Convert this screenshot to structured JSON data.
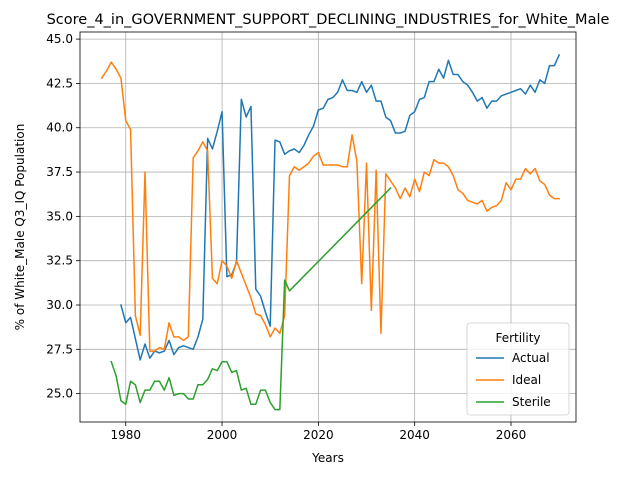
{
  "chart_data": {
    "type": "line",
    "title": "Score_4_in_GOVERNMENT_SUPPORT_DECLINING_INDUSTRIES_for_White_Male",
    "xlabel": "Years",
    "ylabel": "% of White_Male Q3_IQ Population",
    "xlim": [
      1970.5,
      2073.5
    ],
    "ylim": [
      23.4,
      45.4
    ],
    "xticks": [
      1980,
      2000,
      2020,
      2040,
      2060
    ],
    "yticks": [
      25.0,
      27.5,
      30.0,
      32.5,
      35.0,
      37.5,
      40.0,
      42.5,
      45.0
    ],
    "grid": true,
    "legend": {
      "title": "Fertility",
      "placement": "lower-right"
    },
    "series": [
      {
        "name": "Actual",
        "color": "#1f77b4",
        "x": [
          1979,
          1980,
          1981,
          1982,
          1983,
          1984,
          1985,
          1986,
          1987,
          1988,
          1989,
          1990,
          1991,
          1992,
          1993,
          1994,
          1995,
          1996,
          1997,
          1998,
          1999,
          2000,
          2001,
          2002,
          2003,
          2004,
          2005,
          2006,
          2007,
          2008,
          2009,
          2010,
          2011,
          2012,
          2013,
          2014,
          2015,
          2016,
          2017,
          2018,
          2019,
          2020,
          2021,
          2022,
          2023,
          2024,
          2025,
          2026,
          2027,
          2028,
          2029,
          2030,
          2031,
          2032,
          2033,
          2034,
          2035,
          2036,
          2037,
          2038,
          2039,
          2040,
          2041,
          2042,
          2043,
          2044,
          2045,
          2046,
          2047,
          2048,
          2049,
          2050,
          2051,
          2052,
          2053,
          2054,
          2055,
          2056,
          2057,
          2058,
          2059,
          2060,
          2061,
          2062,
          2063,
          2064,
          2065,
          2066,
          2067,
          2068,
          2069,
          2070
        ],
        "y": [
          30.0,
          29.0,
          29.3,
          28.1,
          26.9,
          27.8,
          27.0,
          27.4,
          27.3,
          27.4,
          28.0,
          27.2,
          27.6,
          27.7,
          27.6,
          27.5,
          28.2,
          29.2,
          39.4,
          38.8,
          39.8,
          40.9,
          31.6,
          31.7,
          32.4,
          41.6,
          40.6,
          41.2,
          30.9,
          30.5,
          29.6,
          28.8,
          39.3,
          39.2,
          38.5,
          38.7,
          38.8,
          38.6,
          39.0,
          39.6,
          40.1,
          41.0,
          41.1,
          41.6,
          41.7,
          42.0,
          42.7,
          42.1,
          42.1,
          42.0,
          42.6,
          42.0,
          42.4,
          41.5,
          41.5,
          40.6,
          40.4,
          39.7,
          39.7,
          39.8,
          40.7,
          40.9,
          41.6,
          41.7,
          42.6,
          42.6,
          43.3,
          42.8,
          43.8,
          43.0,
          43.0,
          42.6,
          42.4,
          42.0,
          41.5,
          41.7,
          41.1,
          41.5,
          41.5,
          41.8,
          41.9,
          42.0,
          42.1,
          42.2,
          41.9,
          42.4,
          42.0,
          42.7,
          42.5,
          43.5,
          43.5,
          44.1
        ]
      },
      {
        "name": "Ideal",
        "color": "#ff7f0e",
        "x": [
          1975,
          1976,
          1977,
          1978,
          1979,
          1980,
          1981,
          1982,
          1983,
          1984,
          1985,
          1986,
          1987,
          1988,
          1989,
          1990,
          1991,
          1992,
          1993,
          1994,
          1995,
          1996,
          1997,
          1998,
          1999,
          2000,
          2001,
          2002,
          2003,
          2004,
          2005,
          2006,
          2007,
          2008,
          2009,
          2010,
          2011,
          2012,
          2013,
          2014,
          2015,
          2016,
          2017,
          2018,
          2019,
          2020,
          2021,
          2022,
          2023,
          2024,
          2025,
          2026,
          2027,
          2028,
          2029,
          2030,
          2031,
          2032,
          2033,
          2034,
          2035,
          2036,
          2037,
          2038,
          2039,
          2040,
          2041,
          2042,
          2043,
          2044,
          2045,
          2046,
          2047,
          2048,
          2049,
          2050,
          2051,
          2052,
          2053,
          2054,
          2055,
          2056,
          2057,
          2058,
          2059,
          2060,
          2061,
          2062,
          2063,
          2064,
          2065,
          2066,
          2067,
          2068,
          2069,
          2070
        ],
        "y": [
          42.8,
          43.2,
          43.7,
          43.3,
          42.8,
          40.4,
          39.9,
          29.4,
          28.3,
          37.5,
          27.4,
          27.4,
          27.6,
          27.5,
          29.0,
          28.2,
          28.2,
          28.0,
          28.2,
          38.3,
          38.7,
          39.2,
          38.7,
          31.5,
          31.2,
          32.5,
          32.2,
          31.5,
          32.5,
          31.8,
          31.1,
          30.4,
          29.5,
          29.4,
          28.9,
          28.2,
          28.7,
          28.4,
          29.4,
          37.3,
          37.8,
          37.6,
          37.8,
          38.0,
          38.4,
          38.6,
          37.9,
          37.9,
          37.9,
          37.9,
          37.8,
          37.8,
          39.6,
          38.1,
          31.2,
          38.0,
          29.7,
          37.6,
          28.4,
          37.4,
          37.0,
          36.6,
          36.0,
          36.6,
          36.1,
          37.1,
          36.4,
          37.5,
          37.3,
          38.2,
          38.0,
          38.0,
          37.8,
          37.3,
          36.5,
          36.3,
          35.9,
          35.8,
          35.7,
          35.9,
          35.3,
          35.5,
          35.6,
          35.9,
          36.9,
          36.5,
          37.1,
          37.1,
          37.7,
          37.4,
          37.7,
          37.0,
          36.8,
          36.2,
          36.0,
          36.0
        ]
      },
      {
        "name": "Sterile",
        "color": "#2ca02c",
        "x": [
          1977,
          1978,
          1979,
          1980,
          1981,
          1982,
          1983,
          1984,
          1985,
          1986,
          1987,
          1988,
          1989,
          1990,
          1991,
          1992,
          1993,
          1994,
          1995,
          1996,
          1997,
          1998,
          1999,
          2000,
          2001,
          2002,
          2003,
          2004,
          2005,
          2006,
          2007,
          2008,
          2009,
          2010,
          2011,
          2012,
          2013,
          2014,
          2035
        ],
        "y": [
          26.8,
          26.0,
          24.6,
          24.4,
          25.7,
          25.5,
          24.5,
          25.2,
          25.2,
          25.7,
          25.7,
          25.2,
          25.9,
          24.9,
          25.0,
          25.0,
          24.7,
          24.7,
          25.5,
          25.5,
          25.8,
          26.4,
          26.3,
          26.8,
          26.8,
          26.2,
          26.3,
          25.2,
          25.3,
          24.4,
          24.4,
          25.2,
          25.2,
          24.5,
          24.1,
          24.1,
          31.4,
          30.8,
          36.6
        ]
      }
    ]
  }
}
